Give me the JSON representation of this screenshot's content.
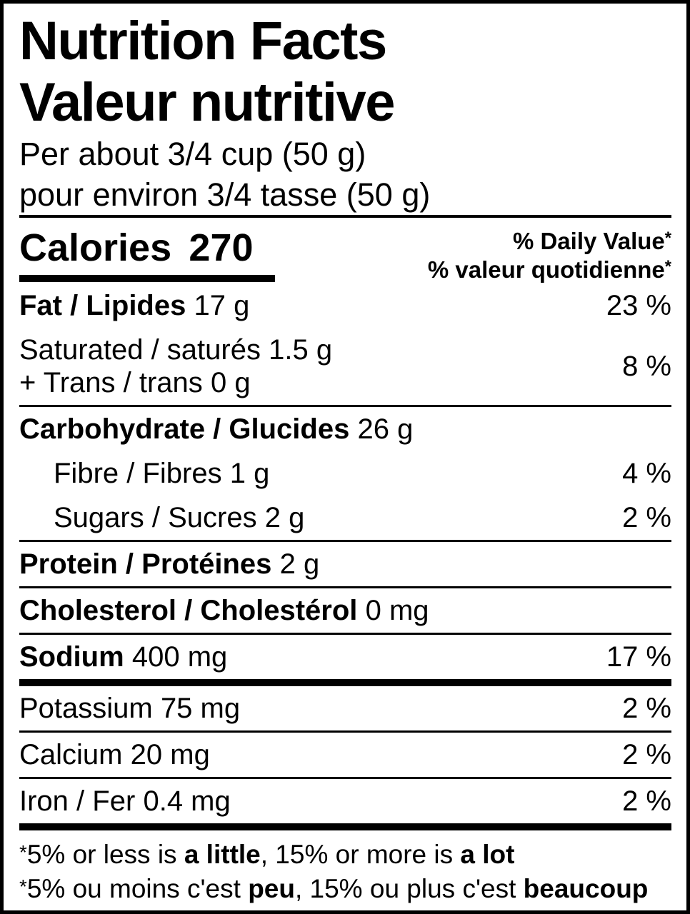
{
  "label": {
    "title_en": "Nutrition Facts",
    "title_fr": "Valeur nutritive",
    "serving_en": "Per about 3/4 cup (50 g)",
    "serving_fr": "pour environ 3/4 tasse (50 g)"
  },
  "calories": {
    "label": "Calories",
    "value": "270"
  },
  "daily_value_header": {
    "en": "% Daily Value",
    "fr": "% valeur quotidienne",
    "asterisk": "*"
  },
  "rows": [
    {
      "name": "Fat / Lipides",
      "amount": "17 g",
      "pct": "23 %"
    },
    {
      "pct": "8 %",
      "lines": [
        {
          "name": "Saturated / saturés",
          "amount": "1.5 g"
        },
        {
          "name": "+ Trans / trans",
          "amount": "0 g"
        }
      ]
    },
    {
      "name": "Carbohydrate / Glucides",
      "amount": "26 g"
    },
    {
      "name": "Fibre / Fibres",
      "amount": "1 g",
      "pct": "4 %"
    },
    {
      "name": "Sugars / Sucres",
      "amount": "2 g",
      "pct": "2 %"
    },
    {
      "name": "Protein / Protéines",
      "amount": "2 g"
    },
    {
      "name": "Cholesterol / Cholestérol",
      "amount": "0 mg"
    },
    {
      "name": "Sodium",
      "amount": "400 mg",
      "pct": "17 %"
    },
    {
      "name": "Potassium",
      "amount": "75 mg",
      "pct": "2 %"
    },
    {
      "name": "Calcium",
      "amount": "20 mg",
      "pct": "2 %"
    },
    {
      "name": "Iron / Fer",
      "amount": "0.4 mg",
      "pct": "2 %"
    }
  ],
  "footnotes": {
    "en": {
      "star": "*",
      "pre": "5% or less is ",
      "bold1": "a little",
      "mid": ", 15% or more is ",
      "bold2": "a lot"
    },
    "fr": {
      "star": "*",
      "pre": "5% ou moins c'est ",
      "bold1": "peu",
      "mid": ", 15% ou plus c'est ",
      "bold2": "beaucoup"
    }
  },
  "colors": {
    "text": "#000000",
    "background": "#ffffff",
    "rule": "#000000"
  }
}
